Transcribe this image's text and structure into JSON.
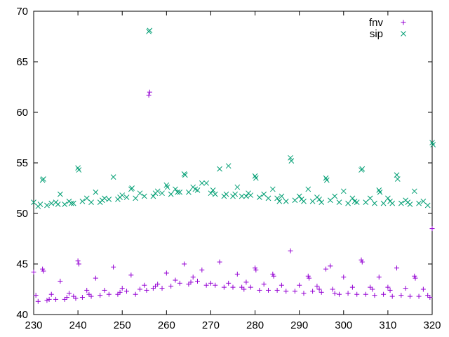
{
  "chart_data": {
    "type": "scatter",
    "title": "",
    "xlabel": "",
    "ylabel": "",
    "xlim": [
      230,
      320
    ],
    "ylim": [
      40,
      70
    ],
    "xticks": [
      230,
      240,
      250,
      260,
      270,
      280,
      290,
      300,
      310,
      320
    ],
    "yticks": [
      40,
      45,
      50,
      55,
      60,
      65,
      70
    ],
    "grid": false,
    "legend_position": "top-right",
    "series": [
      {
        "name": "fnv",
        "marker": "plus",
        "color": "#9400d3",
        "points": [
          [
            230,
            44.2
          ],
          [
            230.5,
            41.9
          ],
          [
            231,
            41.3
          ],
          [
            232,
            44.5
          ],
          [
            232.2,
            44.3
          ],
          [
            233,
            41.4
          ],
          [
            233.5,
            41.5
          ],
          [
            234,
            42.0
          ],
          [
            235,
            41.5
          ],
          [
            236,
            43.3
          ],
          [
            237,
            41.5
          ],
          [
            237.5,
            41.7
          ],
          [
            238,
            42.1
          ],
          [
            239,
            41.8
          ],
          [
            239.5,
            41.6
          ],
          [
            240,
            45.3
          ],
          [
            240.2,
            45.0
          ],
          [
            241,
            41.7
          ],
          [
            242,
            42.4
          ],
          [
            242.5,
            42.0
          ],
          [
            243,
            41.8
          ],
          [
            244,
            43.6
          ],
          [
            245,
            41.9
          ],
          [
            246,
            42.4
          ],
          [
            247,
            42.0
          ],
          [
            248,
            44.7
          ],
          [
            249,
            42.0
          ],
          [
            249.5,
            42.2
          ],
          [
            250,
            42.6
          ],
          [
            251,
            42.3
          ],
          [
            252,
            43.9
          ],
          [
            253,
            42.0
          ],
          [
            254,
            42.5
          ],
          [
            255,
            42.9
          ],
          [
            255.5,
            42.4
          ],
          [
            256,
            61.7
          ],
          [
            256.2,
            62.0
          ],
          [
            257,
            42.6
          ],
          [
            257.5,
            42.8
          ],
          [
            258,
            43.0
          ],
          [
            259,
            42.6
          ],
          [
            260,
            44.1
          ],
          [
            261,
            42.8
          ],
          [
            262,
            43.4
          ],
          [
            263,
            43.1
          ],
          [
            264,
            45.0
          ],
          [
            265,
            43.0
          ],
          [
            265.5,
            43.2
          ],
          [
            266,
            43.7
          ],
          [
            267,
            43.3
          ],
          [
            268,
            44.4
          ],
          [
            269,
            42.9
          ],
          [
            270,
            43.1
          ],
          [
            271,
            42.9
          ],
          [
            272,
            45.2
          ],
          [
            273,
            42.7
          ],
          [
            274,
            43.1
          ],
          [
            275,
            42.7
          ],
          [
            276,
            44.0
          ],
          [
            277,
            42.7
          ],
          [
            277.5,
            42.5
          ],
          [
            278,
            43.2
          ],
          [
            279,
            42.7
          ],
          [
            280,
            44.6
          ],
          [
            280.2,
            44.4
          ],
          [
            281,
            42.4
          ],
          [
            282,
            43.0
          ],
          [
            283,
            42.4
          ],
          [
            284,
            44.0
          ],
          [
            284.2,
            43.8
          ],
          [
            285,
            42.4
          ],
          [
            286,
            42.9
          ],
          [
            287,
            42.3
          ],
          [
            288,
            46.3
          ],
          [
            289,
            42.3
          ],
          [
            290,
            42.9
          ],
          [
            291,
            42.1
          ],
          [
            292,
            43.8
          ],
          [
            292.2,
            43.6
          ],
          [
            293,
            42.3
          ],
          [
            294,
            42.8
          ],
          [
            294.5,
            42.5
          ],
          [
            295,
            42.2
          ],
          [
            296,
            44.5
          ],
          [
            297,
            44.8
          ],
          [
            297.5,
            42.5
          ],
          [
            298,
            42.1
          ],
          [
            299,
            42.0
          ],
          [
            300,
            43.7
          ],
          [
            301,
            42.1
          ],
          [
            302,
            42.7
          ],
          [
            303,
            42.0
          ],
          [
            304,
            45.4
          ],
          [
            304.2,
            45.2
          ],
          [
            305,
            42.0
          ],
          [
            306,
            42.7
          ],
          [
            306.5,
            42.5
          ],
          [
            307,
            41.9
          ],
          [
            308,
            43.7
          ],
          [
            309,
            42.0
          ],
          [
            310,
            42.7
          ],
          [
            310.5,
            42.4
          ],
          [
            311,
            41.8
          ],
          [
            312,
            44.6
          ],
          [
            313,
            41.9
          ],
          [
            314,
            42.6
          ],
          [
            315,
            41.8
          ],
          [
            316,
            43.8
          ],
          [
            316.2,
            43.6
          ],
          [
            317,
            41.8
          ],
          [
            318,
            42.5
          ],
          [
            319,
            41.9
          ],
          [
            319.5,
            41.7
          ],
          [
            320,
            48.5
          ]
        ]
      },
      {
        "name": "sip",
        "marker": "cross",
        "color": "#009e73",
        "points": [
          [
            230,
            51.1
          ],
          [
            231,
            50.7
          ],
          [
            231.5,
            50.9
          ],
          [
            232,
            53.3
          ],
          [
            232.2,
            53.4
          ],
          [
            233,
            50.8
          ],
          [
            234,
            51.0
          ],
          [
            235,
            51.1
          ],
          [
            235.5,
            50.9
          ],
          [
            236,
            51.9
          ],
          [
            237,
            50.9
          ],
          [
            238,
            51.2
          ],
          [
            238.5,
            51.0
          ],
          [
            239,
            51.0
          ],
          [
            240,
            54.5
          ],
          [
            240.2,
            54.3
          ],
          [
            241,
            51.2
          ],
          [
            242,
            51.5
          ],
          [
            243,
            51.1
          ],
          [
            244,
            52.1
          ],
          [
            245,
            51.1
          ],
          [
            245.5,
            51.3
          ],
          [
            246,
            51.5
          ],
          [
            247,
            51.4
          ],
          [
            248,
            53.6
          ],
          [
            249,
            51.4
          ],
          [
            249.5,
            51.6
          ],
          [
            250,
            51.8
          ],
          [
            251,
            51.6
          ],
          [
            252,
            52.4
          ],
          [
            252.2,
            52.5
          ],
          [
            253,
            51.5
          ],
          [
            254,
            52.0
          ],
          [
            255,
            51.7
          ],
          [
            256,
            68.0
          ],
          [
            256.2,
            68.1
          ],
          [
            257,
            51.7
          ],
          [
            257.5,
            52.0
          ],
          [
            258,
            52.2
          ],
          [
            259,
            52.0
          ],
          [
            260,
            52.8
          ],
          [
            260.2,
            52.6
          ],
          [
            261,
            51.9
          ],
          [
            262,
            52.4
          ],
          [
            262.5,
            52.1
          ],
          [
            263,
            52.1
          ],
          [
            264,
            53.9
          ],
          [
            264.2,
            53.8
          ],
          [
            265,
            52.1
          ],
          [
            266,
            52.6
          ],
          [
            266.5,
            52.4
          ],
          [
            267,
            52.3
          ],
          [
            268,
            53.0
          ],
          [
            269,
            53.0
          ],
          [
            270,
            52.0
          ],
          [
            270.5,
            52.3
          ],
          [
            271,
            51.9
          ],
          [
            272,
            54.4
          ],
          [
            273,
            51.7
          ],
          [
            273.5,
            51.9
          ],
          [
            274,
            54.7
          ],
          [
            275,
            51.7
          ],
          [
            275.5,
            51.9
          ],
          [
            276,
            52.6
          ],
          [
            277,
            51.7
          ],
          [
            278,
            51.7
          ],
          [
            278.5,
            52.0
          ],
          [
            279,
            51.8
          ],
          [
            280,
            53.7
          ],
          [
            280.2,
            53.5
          ],
          [
            281,
            51.6
          ],
          [
            282,
            51.9
          ],
          [
            283,
            51.5
          ],
          [
            284,
            52.4
          ],
          [
            285,
            51.5
          ],
          [
            285.5,
            51.2
          ],
          [
            286,
            51.7
          ],
          [
            287,
            51.2
          ],
          [
            288,
            55.5
          ],
          [
            288.2,
            55.2
          ],
          [
            289,
            51.3
          ],
          [
            290,
            51.7
          ],
          [
            290.5,
            51.4
          ],
          [
            291,
            51.2
          ],
          [
            292,
            52.4
          ],
          [
            293,
            51.2
          ],
          [
            294,
            51.6
          ],
          [
            294.5,
            51.4
          ],
          [
            295,
            51.1
          ],
          [
            296,
            53.5
          ],
          [
            296.2,
            53.3
          ],
          [
            297,
            51.3
          ],
          [
            298,
            51.7
          ],
          [
            299,
            51.1
          ],
          [
            300,
            52.2
          ],
          [
            301,
            51.0
          ],
          [
            302,
            51.5
          ],
          [
            302.5,
            51.2
          ],
          [
            303,
            51.1
          ],
          [
            304,
            54.3
          ],
          [
            304.2,
            54.4
          ],
          [
            305,
            51.1
          ],
          [
            306,
            51.5
          ],
          [
            307,
            51.0
          ],
          [
            308,
            52.3
          ],
          [
            308.2,
            52.1
          ],
          [
            309,
            51.0
          ],
          [
            310,
            51.5
          ],
          [
            310.5,
            51.2
          ],
          [
            311,
            51.0
          ],
          [
            312,
            53.8
          ],
          [
            312.2,
            53.4
          ],
          [
            313,
            51.0
          ],
          [
            314,
            51.3
          ],
          [
            314.5,
            51.1
          ],
          [
            315,
            50.9
          ],
          [
            316,
            52.2
          ],
          [
            317,
            51.0
          ],
          [
            318,
            51.2
          ],
          [
            319,
            50.8
          ],
          [
            320,
            57.0
          ],
          [
            320.2,
            56.8
          ]
        ]
      }
    ]
  }
}
